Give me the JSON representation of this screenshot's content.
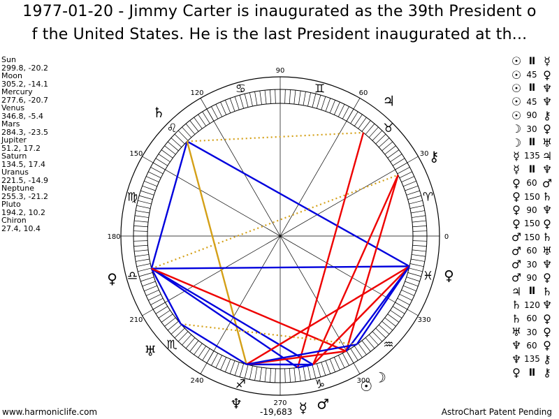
{
  "title": {
    "line1": "1977-01-20 - Jimmy Carter is inaugurated as the 39th President o",
    "line2": "f the United States. He is the last President inaugurated at th..."
  },
  "planets": [
    {
      "name": "Sun",
      "coords": "299.8, -20.2",
      "lon": 299.8,
      "glyph": "☉"
    },
    {
      "name": "Moon",
      "coords": "305.2, -14.1",
      "lon": 305.2,
      "glyph": "☽"
    },
    {
      "name": "Mercury",
      "coords": "277.6, -20.7",
      "lon": 277.6,
      "glyph": "☿"
    },
    {
      "name": "Venus",
      "coords": "346.8, -5.4",
      "lon": 346.8,
      "glyph": "♀"
    },
    {
      "name": "Mars",
      "coords": "284.3, -23.5",
      "lon": 284.3,
      "glyph": "♂"
    },
    {
      "name": "Jupiter",
      "coords": "51.2, 17.2",
      "lon": 51.2,
      "glyph": "♃"
    },
    {
      "name": "Saturn",
      "coords": "134.5, 17.4",
      "lon": 134.5,
      "glyph": "♄"
    },
    {
      "name": "Uranus",
      "coords": "221.5, -14.9",
      "lon": 221.5,
      "glyph": "♅"
    },
    {
      "name": "Neptune",
      "coords": "255.3, -21.2",
      "lon": 255.3,
      "glyph": "♆"
    },
    {
      "name": "Pluto",
      "coords": "194.2, 10.2",
      "lon": 194.2,
      "glyph": "♀"
    },
    {
      "name": "Chiron",
      "coords": "27.4, 10.4",
      "lon": 27.4,
      "glyph": "⚷"
    }
  ],
  "degree_labels": [
    "90",
    "60",
    "30",
    "0",
    "330",
    "300",
    "270",
    "240",
    "210",
    "180",
    "150",
    "120"
  ],
  "signs": [
    {
      "glyph": "♈",
      "name": "aries"
    },
    {
      "glyph": "♉",
      "name": "taurus"
    },
    {
      "glyph": "♊",
      "name": "gemini"
    },
    {
      "glyph": "♋",
      "name": "cancer"
    },
    {
      "glyph": "♌",
      "name": "leo"
    },
    {
      "glyph": "♍",
      "name": "virgo"
    },
    {
      "glyph": "♎",
      "name": "libra"
    },
    {
      "glyph": "♏",
      "name": "scorpio"
    },
    {
      "glyph": "♐",
      "name": "sagittarius"
    },
    {
      "glyph": "♑",
      "name": "capricorn"
    },
    {
      "glyph": "♒",
      "name": "aquarius"
    },
    {
      "glyph": "♓",
      "name": "pisces"
    }
  ],
  "aspect_lines": [
    {
      "from": "Saturn",
      "to": "Venus",
      "color": "#0000dd"
    },
    {
      "from": "Saturn",
      "to": "Pluto",
      "color": "#0000dd"
    },
    {
      "from": "Saturn",
      "to": "Neptune",
      "color": "#d4a017"
    },
    {
      "from": "Saturn",
      "to": "Jupiter",
      "color": "#d4a017",
      "dotted": true
    },
    {
      "from": "Pluto",
      "to": "Chiron",
      "color": "#d4a017",
      "dotted": true
    },
    {
      "from": "Pluto",
      "to": "Venus",
      "color": "#0000dd"
    },
    {
      "from": "Pluto",
      "to": "Mars",
      "color": "#0000dd"
    },
    {
      "from": "Pluto",
      "to": "Mercury",
      "color": "#0000dd"
    },
    {
      "from": "Pluto",
      "to": "Uranus",
      "color": "#0000dd"
    },
    {
      "from": "Pluto",
      "to": "Sun",
      "color": "#ee0000"
    },
    {
      "from": "Jupiter",
      "to": "Mercury",
      "color": "#ee0000"
    },
    {
      "from": "Chiron",
      "to": "Mars",
      "color": "#ee0000"
    },
    {
      "from": "Chiron",
      "to": "Sun",
      "color": "#ee0000"
    },
    {
      "from": "Venus",
      "to": "Mars",
      "color": "#ee0000"
    },
    {
      "from": "Venus",
      "to": "Neptune",
      "color": "#ee0000"
    },
    {
      "from": "Venus",
      "to": "Sun",
      "color": "#0000dd"
    },
    {
      "from": "Venus",
      "to": "Moon",
      "color": "#0000dd"
    },
    {
      "from": "Uranus",
      "to": "Moon",
      "color": "#d4a017",
      "dotted": true
    },
    {
      "from": "Neptune",
      "to": "Mars",
      "color": "#0000dd"
    },
    {
      "from": "Neptune",
      "to": "Sun",
      "color": "#ee0000"
    },
    {
      "from": "Neptune",
      "to": "Moon",
      "color": "#0000dd"
    },
    {
      "from": "Uranus",
      "to": "Neptune",
      "color": "#0000dd"
    },
    {
      "from": "Mercury",
      "to": "Mars",
      "color": "#0000dd"
    }
  ],
  "aspects": [
    {
      "p1": "☉",
      "angle": "II",
      "p2": "☿"
    },
    {
      "p1": "☉",
      "angle": "45",
      "p2": "♀"
    },
    {
      "p1": "☉",
      "angle": "II",
      "p2": "♆"
    },
    {
      "p1": "☉",
      "angle": "45",
      "p2": "♆"
    },
    {
      "p1": "☉",
      "angle": "90",
      "p2": "⚷"
    },
    {
      "p1": "☽",
      "angle": "30",
      "p2": "♀"
    },
    {
      "p1": "☽",
      "angle": "II",
      "p2": "♅"
    },
    {
      "p1": "☿",
      "angle": "135",
      "p2": "♃"
    },
    {
      "p1": "☿",
      "angle": "II",
      "p2": "♆"
    },
    {
      "p1": "♀",
      "angle": "60",
      "p2": "♂"
    },
    {
      "p1": "♀",
      "angle": "150",
      "p2": "♄"
    },
    {
      "p1": "♀",
      "angle": "90",
      "p2": "♆"
    },
    {
      "p1": "♀",
      "angle": "150",
      "p2": "♀"
    },
    {
      "p1": "♂",
      "angle": "150",
      "p2": "♄"
    },
    {
      "p1": "♂",
      "angle": "60",
      "p2": "♅"
    },
    {
      "p1": "♂",
      "angle": "30",
      "p2": "♆"
    },
    {
      "p1": "♂",
      "angle": "90",
      "p2": "♀"
    },
    {
      "p1": "♃",
      "angle": "II",
      "p2": "♄"
    },
    {
      "p1": "♄",
      "angle": "120",
      "p2": "♆"
    },
    {
      "p1": "♄",
      "angle": "60",
      "p2": "♀"
    },
    {
      "p1": "♅",
      "angle": "30",
      "p2": "♀"
    },
    {
      "p1": "♆",
      "angle": "60",
      "p2": "♀"
    },
    {
      "p1": "♆",
      "angle": "135",
      "p2": "⚷"
    },
    {
      "p1": "♀",
      "angle": "II",
      "p2": "⚷"
    }
  ],
  "footer": {
    "left": "www.harmoniclife.com",
    "center": "-19,683",
    "right": "AstroChart Patent Pending"
  }
}
